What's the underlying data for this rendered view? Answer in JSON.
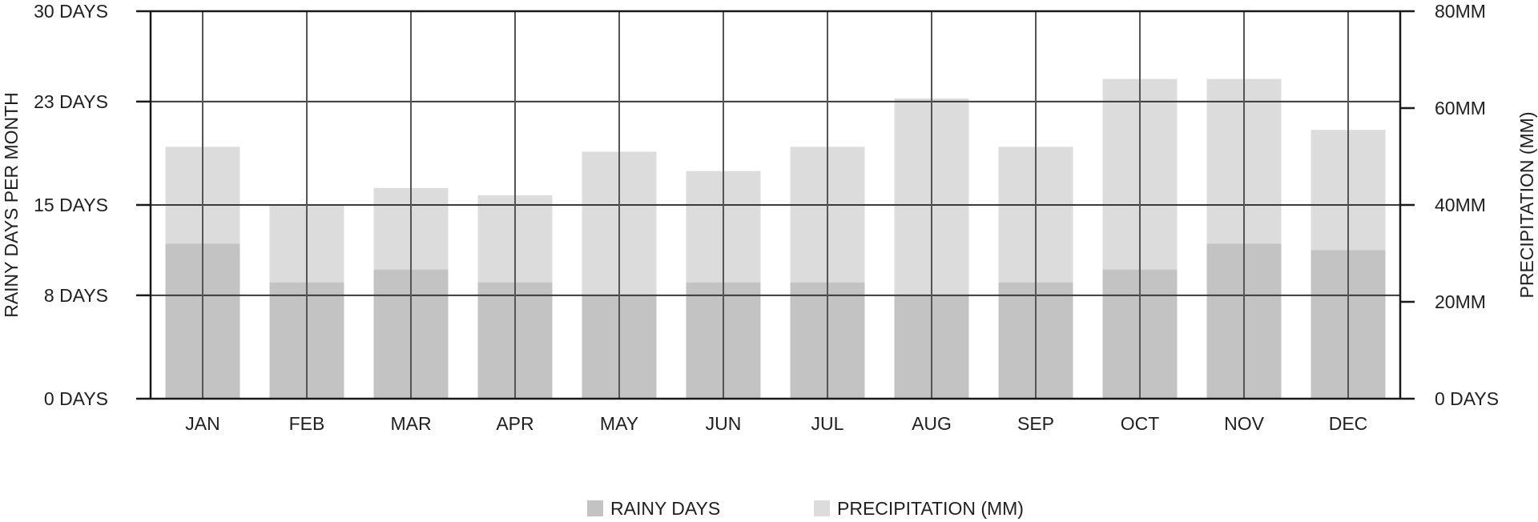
{
  "chart_data": {
    "type": "bar",
    "categories": [
      "JAN",
      "FEB",
      "MAR",
      "APR",
      "MAY",
      "JUN",
      "JUL",
      "AUG",
      "SEP",
      "OCT",
      "NOV",
      "DEC"
    ],
    "series": [
      {
        "name": "PRECIPITATION (MM)",
        "axis": "right",
        "color": "#dcdcdc",
        "values": [
          52,
          40,
          43.5,
          42,
          51,
          47,
          52,
          62,
          52,
          66,
          66,
          55.5
        ]
      },
      {
        "name": "RAINY DAYS",
        "axis": "left",
        "color": "#c3c3c3",
        "values": [
          12,
          9,
          10,
          9,
          8,
          9,
          9,
          8,
          9,
          10,
          12,
          11.5
        ]
      }
    ],
    "left_axis": {
      "title": "RAINY DAYS PER MONTH",
      "ylim": [
        0,
        30
      ],
      "ticks": [
        30,
        23,
        15,
        8,
        0
      ],
      "tick_labels": [
        "30 DAYS",
        "23 DAYS",
        "15 DAYS",
        "8 DAYS",
        "0 DAYS"
      ]
    },
    "right_axis": {
      "title": "PRECIPITATION (MM)",
      "ylim": [
        0,
        80
      ],
      "ticks": [
        80,
        60,
        40,
        20,
        0
      ],
      "tick_labels": [
        "80MM",
        "60MM",
        "40MM",
        "20MM",
        "0 DAYS"
      ]
    },
    "grid": true,
    "legend": {
      "position": "bottom-center",
      "items": [
        {
          "label": "RAINY DAYS",
          "color": "#c3c3c3"
        },
        {
          "label": "PRECIPITATION (MM)",
          "color": "#dcdcdc"
        }
      ]
    }
  }
}
